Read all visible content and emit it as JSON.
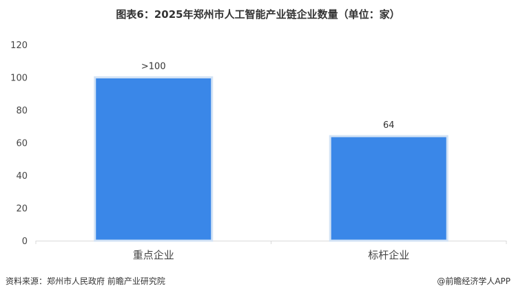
{
  "chart_data": {
    "type": "bar",
    "title": "图表6：2025年郑州市人工智能产业链企业数量（单位：家）",
    "categories": [
      "重点企业",
      "标杆企业"
    ],
    "values": [
      100,
      64
    ],
    "data_labels": [
      ">100",
      "64"
    ],
    "xlabel": "",
    "ylabel": "",
    "ylim": [
      0,
      120
    ],
    "yticks": [
      0,
      20,
      40,
      60,
      80,
      100,
      120
    ],
    "grid": false,
    "bar_color": "#3a87e8",
    "bar_border_color": "#d3e3f5"
  },
  "footer": {
    "source": "资料来源：郑州市人民政府 前瞻产业研究院",
    "credit": "@前瞻经济学人APP"
  }
}
